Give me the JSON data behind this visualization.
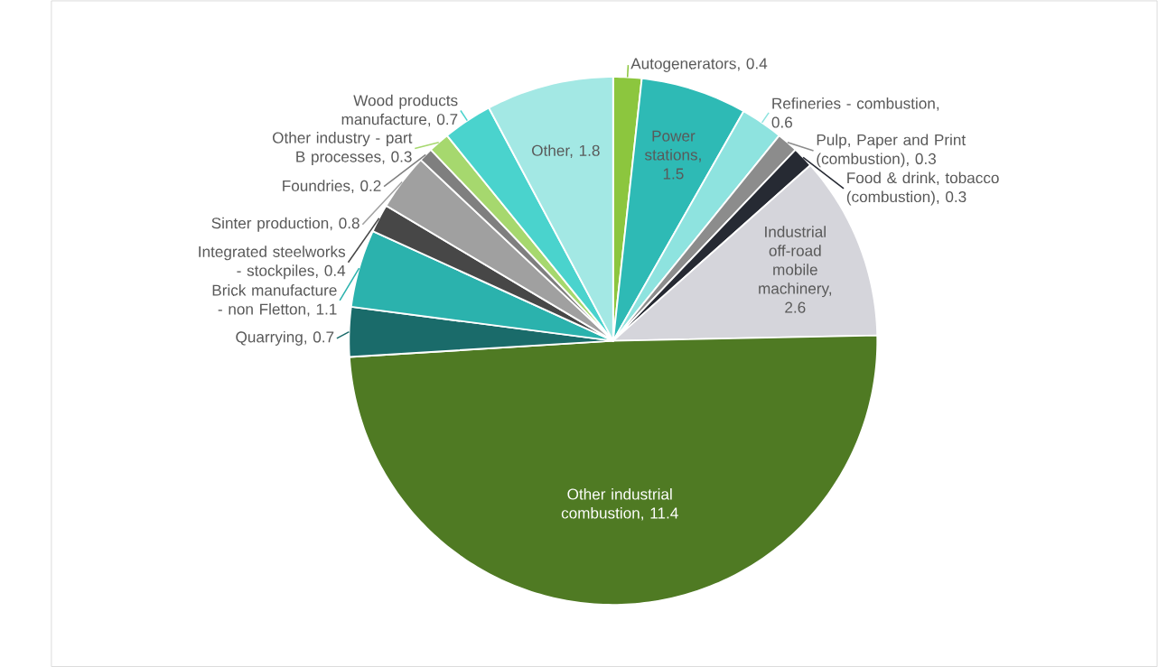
{
  "chart_data": {
    "type": "pie",
    "categories": [
      "Autogenerators, 0.4",
      "Power stations, 1.5",
      "Refineries - combustion, 0.6",
      "Pulp, Paper and Print (combustion), 0.3",
      "Food & drink, tobacco (combustion), 0.3",
      "Industrial off-road mobile machinery, 2.6",
      "Other industrial combustion, 11.4",
      "Quarrying, 0.7",
      "Brick manufacture - non Fletton, 1.1",
      "Integrated steelworks - stockpiles, 0.4",
      "Sinter production, 0.8",
      "Foundries, 0.2",
      "Other industry - part B processes, 0.3",
      "Wood products manufacture, 0.7",
      "Other, 1.8"
    ],
    "values": [
      0.4,
      1.5,
      0.6,
      0.3,
      0.3,
      2.6,
      11.4,
      0.7,
      1.1,
      0.4,
      0.8,
      0.2,
      0.3,
      0.7,
      1.8
    ],
    "colors": [
      "#8cc63e",
      "#2ebab5",
      "#8ee3df",
      "#8c8c8c",
      "#262a33",
      "#d5d5db",
      "#4f7a23",
      "#1a6b6a",
      "#2bb2ad",
      "#474747",
      "#a0a0a0",
      "#7f7f7f",
      "#a6d86e",
      "#4ad3cd",
      "#a3e8e4"
    ]
  }
}
